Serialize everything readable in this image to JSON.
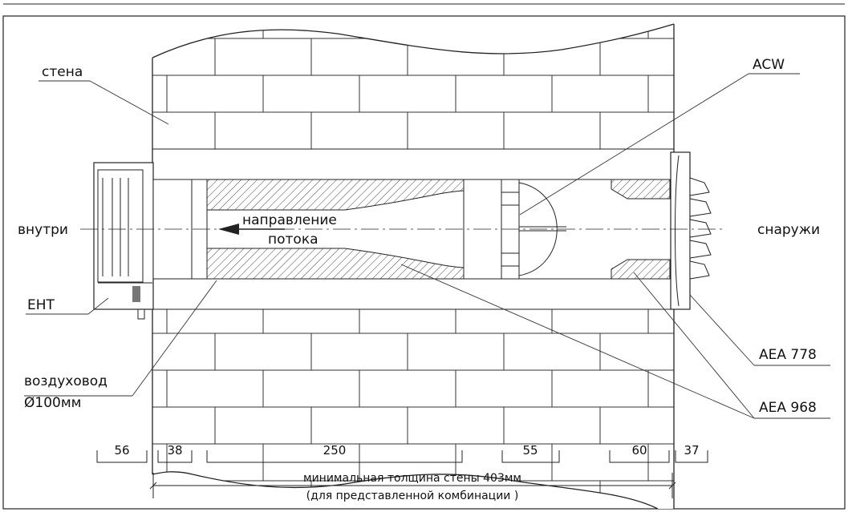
{
  "labels": {
    "wall": "стена",
    "inside": "внутри",
    "outside": "снаружи",
    "flow_line1": "направление",
    "flow_line2": "потока",
    "duct_line1": "воздуховод",
    "duct_line2": "Ø100мм",
    "eht": "EHT",
    "acw": "ACW",
    "aea778": "AEA 778",
    "aea968": "AEA 968"
  },
  "dimensions": [
    "56",
    "38",
    "250",
    "55",
    "60",
    "37"
  ],
  "total": {
    "line1": "минимальная толщина стены 403мм",
    "line2": "(для представленной комбинации )"
  },
  "colors": {
    "line": "#222222",
    "hatch": "#444444",
    "background": "#ffffff"
  }
}
